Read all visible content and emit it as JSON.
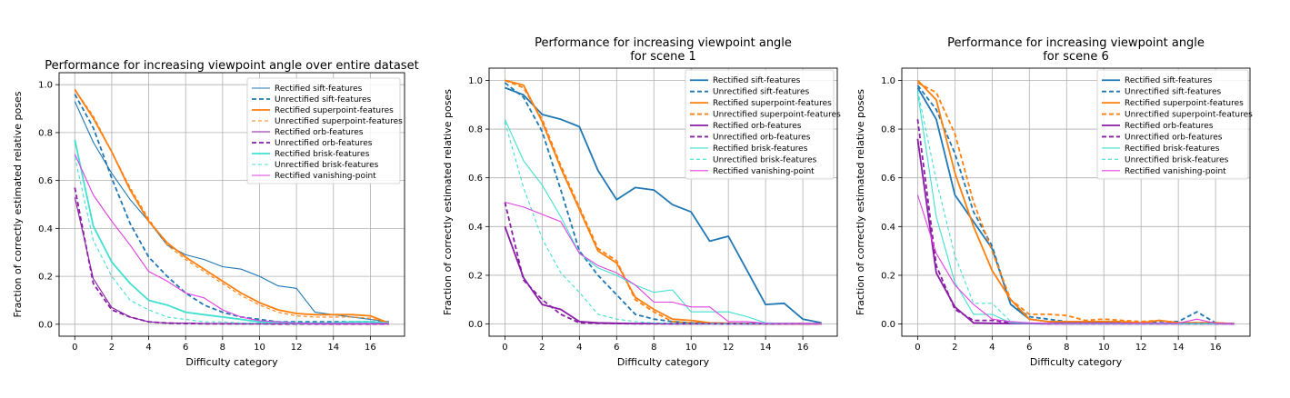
{
  "colors": {
    "sift": "#1f77b4",
    "superpoint": "#ff7f0e",
    "orb": "#8a1da6",
    "brisk": "#40e0d0",
    "vanishing": "#e040e0",
    "grid": "#b0b0b0"
  },
  "chart_data": [
    {
      "type": "line",
      "title": "Performance for increasing viewpoint angle over entire dataset",
      "xlabel": "Difficulty category",
      "ylabel": "Fraction of correctly estimated relative poses",
      "xlim": [
        -0.85,
        17.85
      ],
      "ylim": [
        -0.05,
        1.05
      ],
      "xticks": [
        0,
        2,
        4,
        6,
        8,
        10,
        12,
        14,
        16
      ],
      "xtick_labels": [
        "0",
        "2",
        "4",
        "6",
        "8",
        "10",
        "12",
        "14",
        "16"
      ],
      "yticks": [
        0.0,
        0.2,
        0.4,
        0.6,
        0.8,
        1.0
      ],
      "ytick_labels": [
        "0.0",
        "0.2",
        "0.4",
        "0.6",
        "0.8",
        "1.0"
      ],
      "grid": true,
      "legend_position": "top-right",
      "x": [
        0,
        1,
        2,
        3,
        4,
        5,
        6,
        7,
        8,
        9,
        10,
        11,
        12,
        13,
        14,
        15,
        16,
        17
      ],
      "series": [
        {
          "name": "Rectified sift-features",
          "family": "sift",
          "style": "solid",
          "weight": "thin",
          "values": [
            0.93,
            0.76,
            0.63,
            0.52,
            0.43,
            0.33,
            0.29,
            0.27,
            0.24,
            0.23,
            0.2,
            0.16,
            0.15,
            0.05,
            0.04,
            0.03,
            0.02,
            0.01
          ]
        },
        {
          "name": "Unrectified sift-features",
          "family": "sift",
          "style": "dashed",
          "weight": "thick",
          "values": [
            0.96,
            0.82,
            0.61,
            0.42,
            0.28,
            0.2,
            0.13,
            0.08,
            0.05,
            0.03,
            0.02,
            0.01,
            0.01,
            0.01,
            0.01,
            0.01,
            0.01,
            0.01
          ]
        },
        {
          "name": "Rectified superpoint-features",
          "family": "superpoint",
          "style": "solid",
          "weight": "thick",
          "values": [
            0.98,
            0.86,
            0.72,
            0.56,
            0.43,
            0.34,
            0.28,
            0.23,
            0.18,
            0.13,
            0.09,
            0.06,
            0.045,
            0.04,
            0.04,
            0.04,
            0.035,
            0.005
          ]
        },
        {
          "name": "Unrectified superpoint-features",
          "family": "superpoint",
          "style": "dashed",
          "weight": "thin",
          "values": [
            0.98,
            0.87,
            0.72,
            0.57,
            0.44,
            0.33,
            0.27,
            0.22,
            0.17,
            0.12,
            0.08,
            0.05,
            0.035,
            0.03,
            0.03,
            0.03,
            0.025,
            0.005
          ]
        },
        {
          "name": "Rectified orb-features",
          "family": "orb",
          "style": "solid",
          "weight": "thin",
          "values": [
            0.53,
            0.19,
            0.07,
            0.03,
            0.01,
            0.005,
            0.005,
            0.003,
            0.003,
            0.002,
            0.002,
            0.002,
            0.002,
            0.001,
            0.001,
            0.001,
            0.001,
            0.001
          ]
        },
        {
          "name": "Unrectified orb-features",
          "family": "orb",
          "style": "dashed",
          "weight": "thick",
          "values": [
            0.57,
            0.17,
            0.06,
            0.03,
            0.01,
            0.005,
            0.003,
            0.002,
            0.002,
            0.002,
            0.002,
            0.001,
            0.001,
            0.001,
            0.001,
            0.001,
            0.001,
            0.001
          ]
        },
        {
          "name": "Rectified brisk-features",
          "family": "brisk",
          "style": "solid",
          "weight": "thick",
          "values": [
            0.77,
            0.41,
            0.26,
            0.17,
            0.1,
            0.08,
            0.05,
            0.04,
            0.03,
            0.02,
            0.01,
            0.01,
            0.005,
            0.005,
            0.005,
            0.01,
            0.01,
            0.005
          ]
        },
        {
          "name": "Unrectified brisk-features",
          "family": "brisk",
          "style": "dashed",
          "weight": "thin",
          "values": [
            0.7,
            0.35,
            0.2,
            0.1,
            0.06,
            0.03,
            0.02,
            0.01,
            0.01,
            0.005,
            0.005,
            0.005,
            0.003,
            0.003,
            0.003,
            0.005,
            0.005,
            0.003
          ]
        },
        {
          "name": "Rectified vanishing-point",
          "family": "vanishing",
          "style": "solid",
          "weight": "thin",
          "values": [
            0.71,
            0.54,
            0.43,
            0.33,
            0.22,
            0.18,
            0.13,
            0.11,
            0.06,
            0.03,
            0.015,
            0.01,
            0.005,
            0.003,
            0.003,
            0.003,
            0.003,
            0.003
          ]
        }
      ]
    },
    {
      "type": "line",
      "title": "Performance for increasing viewpoint angle\nfor scene 1",
      "xlabel": "Difficulty category",
      "ylabel": "Fraction of correctly estimated relative poses",
      "xlim": [
        -0.85,
        17.85
      ],
      "ylim": [
        -0.05,
        1.05
      ],
      "xticks": [
        0,
        2,
        4,
        6,
        8,
        10,
        12,
        14,
        16
      ],
      "xtick_labels": [
        "0",
        "2",
        "4",
        "6",
        "8",
        "10",
        "12",
        "14",
        "16"
      ],
      "yticks": [
        0.0,
        0.2,
        0.4,
        0.6,
        0.8,
        1.0
      ],
      "ytick_labels": [
        "0.0",
        "0.2",
        "0.4",
        "0.6",
        "0.8",
        "1.0"
      ],
      "grid": true,
      "legend_position": "top-right",
      "x": [
        0,
        1,
        2,
        3,
        4,
        5,
        6,
        7,
        8,
        9,
        10,
        11,
        12,
        13,
        14,
        15,
        16,
        17
      ],
      "series": [
        {
          "name": "Rectified sift-features",
          "family": "sift",
          "style": "solid",
          "weight": "thick",
          "values": [
            0.97,
            0.94,
            0.86,
            0.84,
            0.81,
            0.63,
            0.51,
            0.56,
            0.55,
            0.49,
            0.46,
            0.34,
            0.36,
            0.22,
            0.08,
            0.085,
            0.02,
            0.005
          ]
        },
        {
          "name": "Unrectified sift-features",
          "family": "sift",
          "style": "dashed",
          "weight": "thick",
          "values": [
            0.99,
            0.93,
            0.79,
            0.55,
            0.3,
            0.2,
            0.12,
            0.04,
            0.02,
            0.01,
            0.005,
            0.003,
            0.002,
            0.001,
            0.001,
            0.001,
            0.001,
            0.001
          ]
        },
        {
          "name": "Rectified superpoint-features",
          "family": "superpoint",
          "style": "solid",
          "weight": "thick",
          "values": [
            1.0,
            0.98,
            0.83,
            0.64,
            0.47,
            0.3,
            0.25,
            0.11,
            0.06,
            0.02,
            0.015,
            0.005,
            0.003,
            0.002,
            0.001,
            0.001,
            0.001,
            0.001
          ]
        },
        {
          "name": "Unrectified superpoint-features",
          "family": "superpoint",
          "style": "dashed",
          "weight": "thick",
          "values": [
            1.0,
            0.97,
            0.84,
            0.65,
            0.48,
            0.31,
            0.26,
            0.1,
            0.05,
            0.01,
            0.005,
            0.003,
            0.002,
            0.001,
            0.001,
            0.001,
            0.001,
            0.001
          ]
        },
        {
          "name": "Rectified orb-features",
          "family": "orb",
          "style": "solid",
          "weight": "thick",
          "values": [
            0.4,
            0.19,
            0.08,
            0.06,
            0.01,
            0.005,
            0.003,
            0.002,
            0.002,
            0.001,
            0.001,
            0.001,
            0.001,
            0.001,
            0.001,
            0.001,
            0.001,
            0.001
          ]
        },
        {
          "name": "Unrectified orb-features",
          "family": "orb",
          "style": "dashed",
          "weight": "thick",
          "values": [
            0.5,
            0.18,
            0.1,
            0.04,
            0.005,
            0.003,
            0.002,
            0.001,
            0.001,
            0.001,
            0.001,
            0.001,
            0.001,
            0.001,
            0.001,
            0.001,
            0.001,
            0.001
          ]
        },
        {
          "name": "Rectified brisk-features",
          "family": "brisk",
          "style": "solid",
          "weight": "thin",
          "values": [
            0.84,
            0.67,
            0.57,
            0.44,
            0.29,
            0.23,
            0.2,
            0.16,
            0.13,
            0.14,
            0.05,
            0.05,
            0.05,
            0.03,
            0.005,
            0.003,
            0.002,
            0.001
          ]
        },
        {
          "name": "Unrectified brisk-features",
          "family": "brisk",
          "style": "dashed",
          "weight": "thin",
          "values": [
            0.83,
            0.56,
            0.35,
            0.21,
            0.13,
            0.04,
            0.02,
            0.01,
            0.005,
            0.003,
            0.002,
            0.001,
            0.001,
            0.001,
            0.001,
            0.001,
            0.001,
            0.001
          ]
        },
        {
          "name": "Rectified vanishing-point",
          "family": "vanishing",
          "style": "solid",
          "weight": "thin",
          "values": [
            0.5,
            0.48,
            0.45,
            0.42,
            0.29,
            0.24,
            0.21,
            0.16,
            0.09,
            0.09,
            0.07,
            0.07,
            0.01,
            0.01,
            0.003,
            0.002,
            0.002,
            0.001
          ]
        }
      ]
    },
    {
      "type": "line",
      "title": "Performance for increasing viewpoint angle\nfor scene 6",
      "xlabel": "Difficulty category",
      "ylabel": "Fraction of correctly estimated relative poses",
      "xlim": [
        -0.85,
        17.85
      ],
      "ylim": [
        -0.05,
        1.05
      ],
      "xticks": [
        0,
        2,
        4,
        6,
        8,
        10,
        12,
        14,
        16
      ],
      "xtick_labels": [
        "0",
        "2",
        "4",
        "6",
        "8",
        "10",
        "12",
        "14",
        "16"
      ],
      "yticks": [
        0.0,
        0.2,
        0.4,
        0.6,
        0.8,
        1.0
      ],
      "ytick_labels": [
        "0.0",
        "0.2",
        "0.4",
        "0.6",
        "0.8",
        "1.0"
      ],
      "grid": true,
      "legend_position": "top-right",
      "x": [
        0,
        1,
        2,
        3,
        4,
        5,
        6,
        7,
        8,
        9,
        10,
        11,
        12,
        13,
        14,
        15,
        16,
        17
      ],
      "series": [
        {
          "name": "Rectified sift-features",
          "family": "sift",
          "style": "solid",
          "weight": "thick",
          "values": [
            0.97,
            0.84,
            0.53,
            0.42,
            0.31,
            0.08,
            0.02,
            0.01,
            0.005,
            0.005,
            0.005,
            0.003,
            0.003,
            0.002,
            0.005,
            0.003,
            0.003,
            0.001
          ]
        },
        {
          "name": "Unrectified sift-features",
          "family": "sift",
          "style": "dashed",
          "weight": "thick",
          "values": [
            0.98,
            0.88,
            0.7,
            0.46,
            0.32,
            0.08,
            0.03,
            0.02,
            0.01,
            0.005,
            0.01,
            0.005,
            0.005,
            0.01,
            0.01,
            0.05,
            0.005,
            0.001
          ]
        },
        {
          "name": "Rectified superpoint-features",
          "family": "superpoint",
          "style": "solid",
          "weight": "thick",
          "values": [
            1.0,
            0.92,
            0.62,
            0.4,
            0.22,
            0.1,
            0.02,
            0.01,
            0.01,
            0.01,
            0.01,
            0.01,
            0.005,
            0.015,
            0.005,
            0.005,
            0.005,
            0.001
          ]
        },
        {
          "name": "Unrectified superpoint-features",
          "family": "superpoint",
          "style": "dashed",
          "weight": "thick",
          "values": [
            0.99,
            0.95,
            0.78,
            0.5,
            0.3,
            0.1,
            0.04,
            0.04,
            0.035,
            0.015,
            0.02,
            0.015,
            0.01,
            0.015,
            0.005,
            0.005,
            0.005,
            0.001
          ]
        },
        {
          "name": "Rectified orb-features",
          "family": "orb",
          "style": "solid",
          "weight": "thick",
          "values": [
            0.76,
            0.21,
            0.07,
            0.005,
            0.003,
            0.002,
            0.002,
            0.001,
            0.001,
            0.001,
            0.001,
            0.001,
            0.001,
            0.001,
            0.001,
            0.001,
            0.001,
            0.001
          ]
        },
        {
          "name": "Unrectified orb-features",
          "family": "orb",
          "style": "dashed",
          "weight": "thick",
          "values": [
            0.84,
            0.24,
            0.06,
            0.015,
            0.015,
            0.005,
            0.002,
            0.001,
            0.001,
            0.001,
            0.001,
            0.001,
            0.001,
            0.001,
            0.001,
            0.001,
            0.001,
            0.001
          ]
        },
        {
          "name": "Rectified brisk-features",
          "family": "brisk",
          "style": "solid",
          "weight": "thin",
          "values": [
            0.95,
            0.44,
            0.17,
            0.04,
            0.04,
            0.005,
            0.003,
            0.002,
            0.001,
            0.001,
            0.001,
            0.001,
            0.001,
            0.001,
            0.001,
            0.001,
            0.001,
            0.001
          ]
        },
        {
          "name": "Unrectified brisk-features",
          "family": "brisk",
          "style": "dashed",
          "weight": "thin",
          "values": [
            0.96,
            0.59,
            0.28,
            0.085,
            0.085,
            0.01,
            0.005,
            0.002,
            0.001,
            0.001,
            0.001,
            0.001,
            0.001,
            0.001,
            0.001,
            0.001,
            0.001,
            0.001
          ]
        },
        {
          "name": "Rectified vanishing-point",
          "family": "vanishing",
          "style": "solid",
          "weight": "thin",
          "values": [
            0.53,
            0.29,
            0.16,
            0.08,
            0.02,
            0.01,
            0.005,
            0.003,
            0.003,
            0.003,
            0.003,
            0.003,
            0.003,
            0.003,
            0.003,
            0.02,
            0.003,
            0.001
          ]
        }
      ]
    }
  ]
}
